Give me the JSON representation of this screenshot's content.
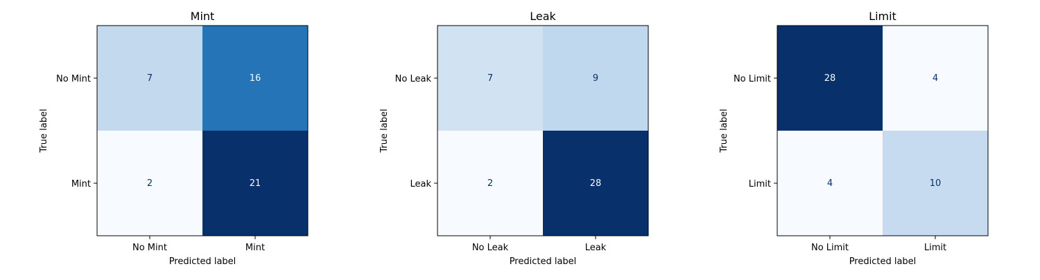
{
  "chart_data": [
    {
      "type": "heatmap",
      "title": "Mint",
      "xlabel": "Predicted label",
      "ylabel": "True label",
      "x_categories": [
        "No Mint",
        "Mint"
      ],
      "y_categories": [
        "No Mint",
        "Mint"
      ],
      "values": [
        [
          7,
          16
        ],
        [
          2,
          21
        ]
      ],
      "colormap": "Blues",
      "grid": false
    },
    {
      "type": "heatmap",
      "title": "Leak",
      "xlabel": "Predicted label",
      "ylabel": "True label",
      "x_categories": [
        "No Leak",
        "Leak"
      ],
      "y_categories": [
        "No Leak",
        "Leak"
      ],
      "values": [
        [
          7,
          9
        ],
        [
          2,
          28
        ]
      ],
      "colormap": "Blues",
      "grid": false
    },
    {
      "type": "heatmap",
      "title": "Limit",
      "xlabel": "Predicted label",
      "ylabel": "True label",
      "x_categories": [
        "No Limit",
        "Limit"
      ],
      "y_categories": [
        "No Limit",
        "Limit"
      ],
      "values": [
        [
          28,
          4
        ],
        [
          4,
          10
        ]
      ],
      "colormap": "Blues",
      "grid": false
    }
  ],
  "colors": {
    "low": "#f7fbff",
    "high": "#08306b",
    "text_dark": "#08306b",
    "text_light": "#f7fbff"
  }
}
